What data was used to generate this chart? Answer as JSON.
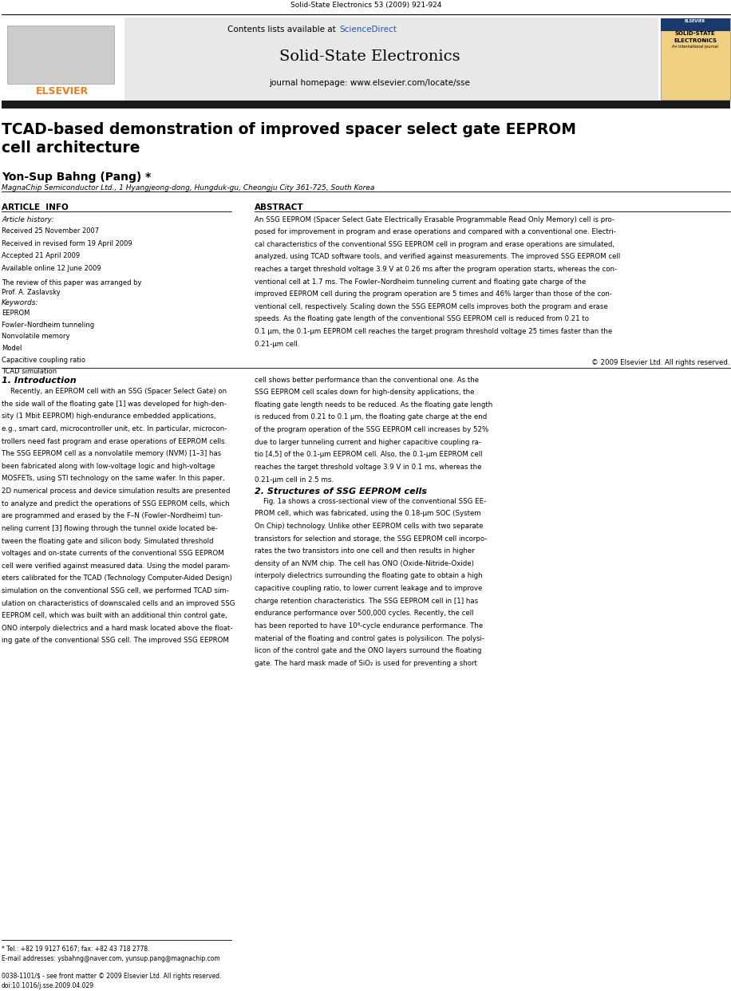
{
  "page_width": 9.92,
  "page_height": 13.23,
  "bg_color": "#ffffff",
  "journal_ref": "Solid-State Electronics 53 (2009) 921-924",
  "header_bg": "#e8e8e8",
  "contents_text": "Contents lists available at ",
  "sciencedirect_text": "ScienceDirect",
  "sciencedirect_color": "#2255aa",
  "journal_title": "Solid-State Electronics",
  "journal_url": "journal homepage: www.elsevier.com/locate/sse",
  "elsevier_color": "#e67e22",
  "paper_title": "TCAD-based demonstration of improved spacer select gate EEPROM\ncell architecture",
  "authors": "Yon-Sup Bahng (Pang) *",
  "affiliation": "MagnaChip Semiconductor Ltd., 1 Hyangjeong-dong, Hungduk-gu, Cheongju City 361-725, South Korea",
  "article_info_label": "ARTICLE  INFO",
  "abstract_label": "ABSTRACT",
  "article_history_label": "Article history:",
  "received_1": "Received 25 November 2007",
  "received_2": "Received in revised form 19 April 2009",
  "accepted": "Accepted 21 April 2009",
  "available": "Available online 12 June 2009",
  "review_note": "The review of this paper was arranged by\nProf. A. Zaslavsky",
  "keywords_label": "Keywords:",
  "keywords": [
    "EEPROM",
    "Fowler–Nordheim tunneling",
    "Nonvolatile memory",
    "Model",
    "Capacitive coupling ratio",
    "TCAD simulation"
  ],
  "copyright": "© 2009 Elsevier Ltd. All rights reserved.",
  "section1_title": "1. Introduction",
  "section2_title": "2. Structures of SSG EEPROM cells",
  "footnote_tel": "* Tel.: +82 19 9127 6167; fax: +82 43 718 2778.",
  "footnote_email": "E-mail addresses: ysbahng@naver.com, yunsup.pang@magnachip.com",
  "footer_issn": "0038-1101/$ - see front matter © 2009 Elsevier Ltd. All rights reserved.",
  "footer_doi": "doi:10.1016/j.sse.2009.04.029",
  "black_bar_color": "#1a1a1a",
  "abstract_lines": [
    "An SSG EEPROM (Spacer Select Gate Electrically Erasable Programmable Read Only Memory) cell is pro-",
    "posed for improvement in program and erase operations and compared with a conventional one. Electri-",
    "cal characteristics of the conventional SSG EEPROM cell in program and erase operations are simulated,",
    "analyzed, using TCAD software tools, and verified against measurements. The improved SSG EEPROM cell",
    "reaches a target threshold voltage 3.9 V at 0.26 ms after the program operation starts, whereas the con-",
    "ventional cell at 1.7 ms. The Fowler–Nordheim tunneling current and floating gate charge of the",
    "improved EEPROM cell during the program operation are 5 times and 46% larger than those of the con-",
    "ventional cell, respectively. Scaling down the SSG EEPROM cells improves both the program and erase",
    "speeds. As the floating gate length of the conventional SSG EEPROM cell is reduced from 0.21 to",
    "0.1 μm, the 0.1-μm EEPROM cell reaches the target program threshold voltage 25 times faster than the",
    "0.21-μm cell."
  ],
  "intro_lines_left": [
    "    Recently, an EEPROM cell with an SSG (Spacer Select Gate) on",
    "the side wall of the floating gate [1] was developed for high-den-",
    "sity (1 Mbit EEPROM) high-endurance embedded applications,",
    "e.g., smart card, microcontroller unit, etc. In particular, microcon-",
    "trollers need fast program and erase operations of EEPROM cells.",
    "The SSG EEPROM cell as a nonvolatile memory (NVM) [1–3] has",
    "been fabricated along with low-voltage logic and high-voltage",
    "MOSFETs, using STI technology on the same wafer. In this paper,",
    "2D numerical process and device simulation results are presented",
    "to analyze and predict the operations of SSG EEPROM cells, which",
    "are programmed and erased by the F–N (Fowler–Nordheim) tun-",
    "neling current [3] flowing through the tunnel oxide located be-",
    "tween the floating gate and silicon body. Simulated threshold",
    "voltages and on-state currents of the conventional SSG EEPROM",
    "cell were verified against measured data. Using the model param-",
    "eters calibrated for the TCAD (Technology Computer-Aided Design)",
    "simulation on the conventional SSG cell, we performed TCAD sim-",
    "ulation on characteristics of downscaled cells and an improved SSG",
    "EEPROM cell, which was built with an additional thin control gate,",
    "ONO interpoly dielectrics and a hard mask located above the float-",
    "ing gate of the conventional SSG cell. The improved SSG EEPROM"
  ],
  "intro_lines_right": [
    "cell shows better performance than the conventional one. As the",
    "SSG EEPROM cell scales down for high-density applications, the",
    "floating gate length needs to be reduced. As the floating gate length",
    "is reduced from 0.21 to 0.1 μm, the floating gate charge at the end",
    "of the program operation of the SSG EEPROM cell increases by 52%",
    "due to larger tunneling current and higher capacitive coupling ra-",
    "tio [4,5] of the 0.1-μm EEPROM cell. Also, the 0.1-μm EEPROM cell",
    "reaches the target threshold voltage 3.9 V in 0.1 ms, whereas the",
    "0.21-μm cell in 2.5 ms."
  ],
  "sec2_lines": [
    "    Fig. 1a shows a cross-sectional view of the conventional SSG EE-",
    "PROM cell, which was fabricated, using the 0.18-μm SOC (System",
    "On Chip) technology. Unlike other EEPROM cells with two separate",
    "transistors for selection and storage, the SSG EEPROM cell incorpo-",
    "rates the two transistors into one cell and then results in higher",
    "density of an NVM chip. The cell has ONO (Oxide-Nitride-Oxide)",
    "interpoly dielectrics surrounding the floating gate to obtain a high",
    "capacitive coupling ratio, to lower current leakage and to improve",
    "charge retention characteristics. The SSG EEPROM cell in [1] has",
    "endurance performance over 500,000 cycles. Recently, the cell",
    "has been reported to have 10⁸-cycle endurance performance. The",
    "material of the floating and control gates is polysilicon. The polysi-",
    "licon of the control gate and the ONO layers surround the floating",
    "gate. The hard mask made of SiO₂ is used for preventing a short"
  ]
}
